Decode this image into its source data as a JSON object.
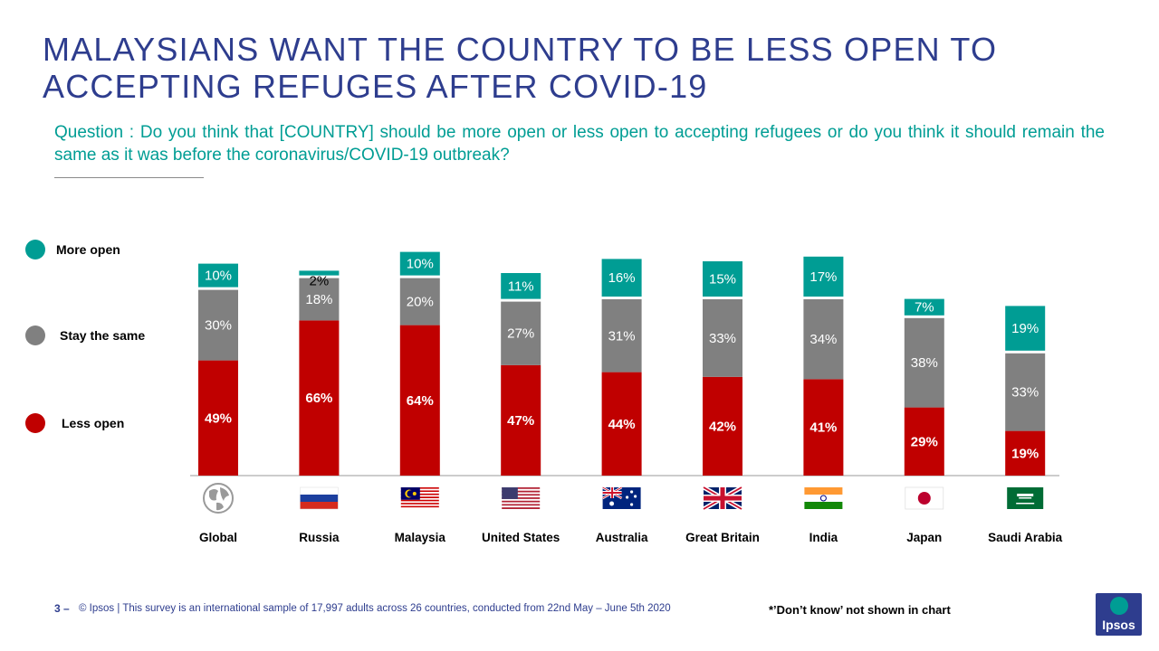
{
  "title": "MALAYSIANS WANT THE COUNTRY TO BE LESS OPEN TO ACCEPTING REFUGES AFTER COVID-19",
  "question": "Question : Do you think that [COUNTRY]  should be more open or less open to accepting refugees or do you think it should remain the same as it was before the coronavirus/COVID-19  outbreak?",
  "legend": {
    "more_open": "More open",
    "stay_same": "Stay the same",
    "less_open": "Less open"
  },
  "colors": {
    "more_open": "#009d94",
    "stay_same": "#808080",
    "less_open": "#c00000",
    "title": "#2e3d8e",
    "question": "#009d94"
  },
  "chart_data": {
    "type": "bar",
    "stacked": true,
    "categories": [
      "Global",
      "Russia",
      "Malaysia",
      "United States",
      "Australia",
      "Great Britain",
      "India",
      "Japan",
      "Saudi Arabia"
    ],
    "series": [
      {
        "name": "Less open",
        "values": [
          49,
          66,
          64,
          47,
          44,
          42,
          41,
          29,
          19
        ],
        "labels": [
          "49%",
          "66%",
          "64%",
          "47%",
          "44%",
          "42%",
          "41%",
          "29%",
          "19%"
        ]
      },
      {
        "name": "Stay the same",
        "values": [
          30,
          18,
          20,
          27,
          31,
          33,
          34,
          38,
          33
        ],
        "labels": [
          "30%",
          "18%",
          "20%",
          "27%",
          "31%",
          "33%",
          "34%",
          "38%",
          "33%"
        ]
      },
      {
        "name": "More open",
        "values": [
          10,
          2,
          10,
          11,
          16,
          15,
          17,
          7,
          19
        ],
        "labels": [
          "10%",
          "2%",
          "10%",
          "11%",
          "16%",
          "15%",
          "17%",
          "7%",
          "19%"
        ]
      }
    ],
    "legend_position": "left",
    "grid": false
  },
  "footer": {
    "page_number": "3",
    "dash": "–",
    "source": "© Ipsos | This survey is an international sample of 17,997 adults across 26 countries, conducted from 22nd May – June 5th 2020",
    "note": "*’Don’t know’ not shown in chart"
  },
  "logo": "Ipsos"
}
